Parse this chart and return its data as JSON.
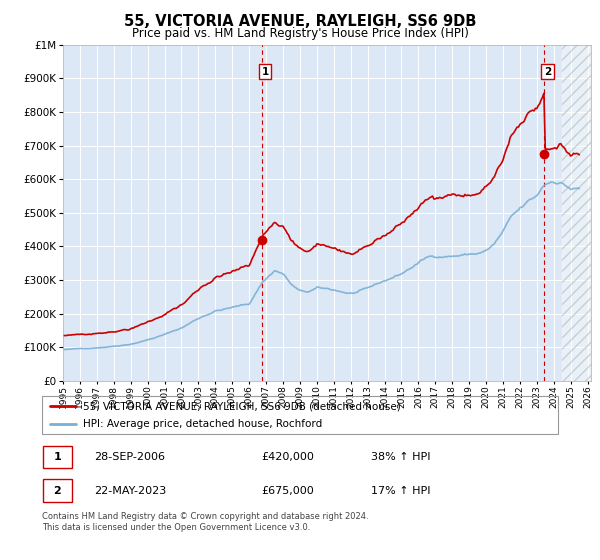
{
  "title": "55, VICTORIA AVENUE, RAYLEIGH, SS6 9DB",
  "subtitle": "Price paid vs. HM Land Registry's House Price Index (HPI)",
  "legend_line1": "55, VICTORIA AVENUE, RAYLEIGH, SS6 9DB (detached house)",
  "legend_line2": "HPI: Average price, detached house, Rochford",
  "annotation1": {
    "num": "1",
    "date": "28-SEP-2006",
    "price": "£420,000",
    "pct": "38% ↑ HPI"
  },
  "annotation2": {
    "num": "2",
    "date": "22-MAY-2023",
    "price": "£675,000",
    "pct": "17% ↑ HPI"
  },
  "footer": "Contains HM Land Registry data © Crown copyright and database right 2024.\nThis data is licensed under the Open Government Licence v3.0.",
  "hpi_color": "#7bafd4",
  "price_color": "#cc0000",
  "dot_color": "#cc0000",
  "vline_color": "#cc0000",
  "ylim": [
    0,
    1000000
  ],
  "yticks": [
    0,
    100000,
    200000,
    300000,
    400000,
    500000,
    600000,
    700000,
    800000,
    900000,
    1000000
  ],
  "background_color": "#ffffff",
  "plot_bg": "#dce8f5"
}
